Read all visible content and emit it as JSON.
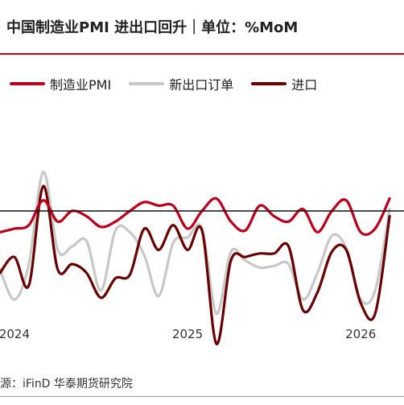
{
  "title": "中国制造业PMI 进出口回升｜单位：%MoM",
  "source": "源：iFinD  华泰期货研究院",
  "colors": {
    "accent": "#c0001a"
  },
  "chart_data": {
    "type": "line",
    "title": "中国制造业PMI 进出口回升｜单位：%MoM",
    "x_ticks": [
      "2024",
      "2025",
      "2026"
    ],
    "x_tick_positions": [
      0,
      12,
      24
    ],
    "x_range": [
      -1,
      27
    ],
    "ylim": [
      -6,
      6
    ],
    "reference_line": 0,
    "grid": false,
    "legend_position": "top",
    "series": [
      {
        "name": "制造业PMI",
        "color": "#c0001a",
        "width": 3.2,
        "x": [
          -1,
          0,
          1,
          2,
          3,
          4,
          5,
          6,
          7,
          8,
          9,
          10,
          11,
          12,
          13,
          14,
          15,
          16,
          17,
          18,
          19,
          20,
          21,
          22,
          23,
          24,
          25,
          26
        ],
        "values": [
          -1.2,
          -1.0,
          -0.8,
          0.6,
          -0.6,
          0.0,
          -0.3,
          -0.9,
          -0.6,
          0.0,
          0.5,
          0.3,
          0.3,
          -1.0,
          0.0,
          0.7,
          -0.6,
          -1.1,
          0.3,
          -0.3,
          -0.6,
          0.1,
          -1.2,
          0.0,
          0.6,
          -1.2,
          -1.0,
          0.7
        ]
      },
      {
        "name": "新出口订单",
        "color": "#c8c8c8",
        "width": 3.2,
        "x": [
          -1,
          0,
          1,
          2,
          3,
          4,
          5,
          6,
          7,
          8,
          9,
          10,
          11,
          12,
          13,
          14,
          15,
          16,
          17,
          18,
          19,
          20,
          21,
          22,
          23,
          24,
          25,
          26
        ],
        "values": [
          -3.3,
          -5.0,
          -3.0,
          2.2,
          -2.2,
          -2.0,
          -1.7,
          -4.5,
          -1.1,
          -1.2,
          -2.5,
          -4.8,
          -1.8,
          -1.5,
          -1.0,
          -5.8,
          -2.3,
          -2.8,
          -3.2,
          -3.1,
          -3.0,
          -5.0,
          -3.5,
          -1.4,
          -2.1,
          -5.0,
          -4.5,
          0.1
        ]
      },
      {
        "name": "进口",
        "color": "#6b0000",
        "width": 3.2,
        "x": [
          -1,
          0,
          1,
          2,
          3,
          4,
          5,
          6,
          7,
          8,
          9,
          10,
          11,
          12,
          13,
          14,
          15,
          16,
          17,
          18,
          19,
          20,
          21,
          22,
          23,
          24,
          25,
          26
        ],
        "values": [
          -3.5,
          -2.6,
          -4.2,
          1.4,
          -3.3,
          -3.0,
          -3.5,
          -4.9,
          -3.8,
          -3.6,
          -1.0,
          -2.2,
          -0.8,
          -2.2,
          -1.1,
          -7.5,
          -2.8,
          -2.6,
          -2.4,
          -2.4,
          -2.0,
          -5.6,
          -4.6,
          -2.3,
          -2.2,
          -5.2,
          -5.8,
          -0.3
        ]
      }
    ]
  }
}
